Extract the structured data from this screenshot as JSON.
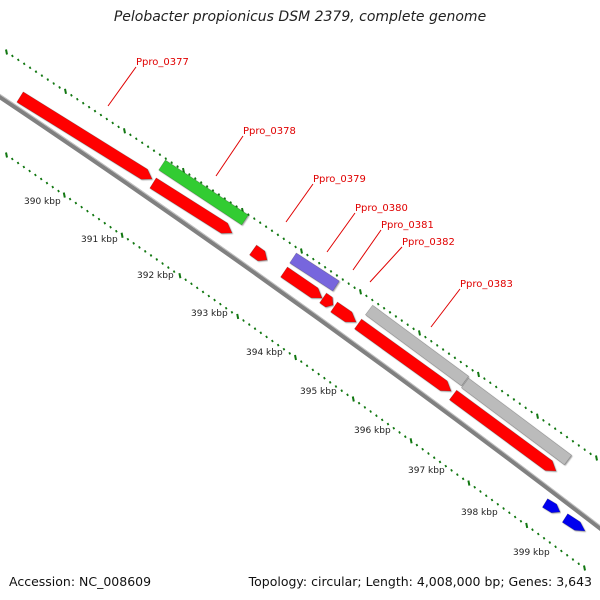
{
  "title": "Pelobacter propionicus DSM 2379, complete genome",
  "footer": {
    "accession": "Accession: NC_008609",
    "summary": "Topology: circular; Length: 4,008,000 bp; Genes: 3,643"
  },
  "colors": {
    "cds": "#ff0000",
    "rna": "#33cc33",
    "misc": "#7766dd",
    "other": "#bbbbbb",
    "repeat": "#0000ee",
    "backbone": "#808080",
    "ticks": "#117711",
    "label": "#e00000"
  },
  "scale": {
    "unit": "kbp",
    "labels": [
      "390 kbp",
      "391 kbp",
      "392 kbp",
      "393 kbp",
      "394 kbp",
      "395 kbp",
      "396 kbp",
      "397 kbp",
      "398 kbp",
      "399 kbp"
    ]
  },
  "gene_labels": [
    "Ppro_0377",
    "Ppro_0378",
    "Ppro_0379",
    "Ppro_0380",
    "Ppro_0381",
    "Ppro_0382",
    "Ppro_0383"
  ]
}
